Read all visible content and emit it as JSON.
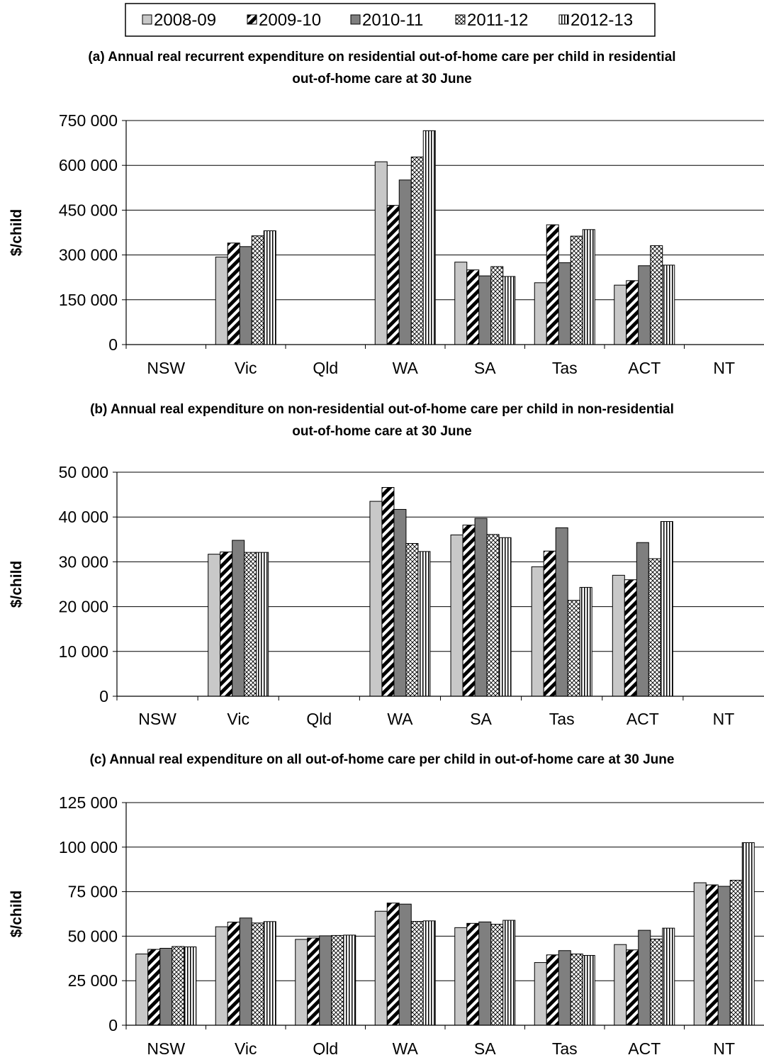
{
  "legend": {
    "series": [
      "2008-09",
      "2009-10",
      "2010-11",
      "2011-12",
      "2012-13"
    ]
  },
  "series_styles": [
    {
      "fill": "#c8c8c8",
      "pattern": "solid"
    },
    {
      "fill": "#ffffff",
      "pattern": "diagonal-stripes"
    },
    {
      "fill": "#7f7f7f",
      "pattern": "solid"
    },
    {
      "fill": "#ffffff",
      "pattern": "crosshatch"
    },
    {
      "fill": "#ffffff",
      "pattern": "vertical-stripes"
    }
  ],
  "chart_data": [
    {
      "type": "bar",
      "title_lines": [
        "(a) Annual real recurrent expenditure on residential out-of-home care per child in residential",
        "out-of-home care at 30 June"
      ],
      "ylabel": "$/child",
      "ylim": [
        0,
        750000
      ],
      "yticks": [
        0,
        150000,
        300000,
        450000,
        600000,
        750000
      ],
      "ytick_labels": [
        "0",
        "150 000",
        "300 000",
        "450 000",
        "600 000",
        "750 000"
      ],
      "categories": [
        "NSW",
        "Vic",
        "Qld",
        "WA",
        "SA",
        "Tas",
        "ACT",
        "NT"
      ],
      "series": [
        {
          "name": "2008-09",
          "values": [
            null,
            293000,
            null,
            612000,
            276000,
            207000,
            199000,
            null
          ]
        },
        {
          "name": "2009-10",
          "values": [
            null,
            340000,
            null,
            466000,
            250000,
            401000,
            214000,
            null
          ]
        },
        {
          "name": "2010-11",
          "values": [
            null,
            328000,
            null,
            551000,
            230000,
            274000,
            264000,
            null
          ]
        },
        {
          "name": "2011-12",
          "values": [
            null,
            364000,
            null,
            628000,
            261000,
            363000,
            331000,
            null
          ]
        },
        {
          "name": "2012-13",
          "values": [
            null,
            381000,
            null,
            716000,
            228000,
            385000,
            266000,
            null
          ]
        }
      ]
    },
    {
      "type": "bar",
      "title_lines": [
        "(b) Annual real expenditure on non-residential out-of-home care per child in non-residential",
        "out-of-home care at 30 June"
      ],
      "ylabel": "$/child",
      "ylim": [
        0,
        50000
      ],
      "yticks": [
        0,
        10000,
        20000,
        30000,
        40000,
        50000
      ],
      "ytick_labels": [
        "0",
        "10 000",
        "20 000",
        "30 000",
        "40 000",
        "50 000"
      ],
      "categories": [
        "NSW",
        "Vic",
        "Qld",
        "WA",
        "SA",
        "Tas",
        "ACT",
        "NT"
      ],
      "series": [
        {
          "name": "2008-09",
          "values": [
            null,
            31700,
            null,
            43500,
            36000,
            28900,
            27000,
            null
          ]
        },
        {
          "name": "2009-10",
          "values": [
            null,
            32200,
            null,
            46600,
            38200,
            32400,
            26000,
            null
          ]
        },
        {
          "name": "2010-11",
          "values": [
            null,
            34800,
            null,
            41700,
            39700,
            37600,
            34300,
            null
          ]
        },
        {
          "name": "2011-12",
          "values": [
            null,
            32100,
            null,
            34100,
            36100,
            21400,
            30700,
            null
          ]
        },
        {
          "name": "2012-13",
          "values": [
            null,
            32100,
            null,
            32300,
            35400,
            24300,
            39000,
            null
          ]
        }
      ]
    },
    {
      "type": "bar",
      "title_lines": [
        "(c) Annual real expenditure on all out-of-home care per child in out-of-home care at 30 June"
      ],
      "ylabel": "$/child",
      "ylim": [
        0,
        125000
      ],
      "yticks": [
        0,
        25000,
        50000,
        75000,
        100000,
        125000
      ],
      "ytick_labels": [
        "0",
        "25 000",
        "50 000",
        "75 000",
        "100 000",
        "125 000"
      ],
      "categories": [
        "NSW",
        "Vic",
        "Qld",
        "WA",
        "SA",
        "Tas",
        "ACT",
        "NT"
      ],
      "series": [
        {
          "name": "2008-09",
          "values": [
            40000,
            55300,
            48200,
            64000,
            54800,
            35200,
            45300,
            80000
          ]
        },
        {
          "name": "2009-10",
          "values": [
            42600,
            57900,
            49000,
            68600,
            57200,
            39500,
            42300,
            78800
          ]
        },
        {
          "name": "2010-11",
          "values": [
            43200,
            60200,
            50200,
            68000,
            58000,
            41900,
            53300,
            78000
          ]
        },
        {
          "name": "2011-12",
          "values": [
            44200,
            57400,
            50400,
            58300,
            56700,
            40000,
            48400,
            81400
          ]
        },
        {
          "name": "2012-13",
          "values": [
            44000,
            58200,
            50600,
            58600,
            58900,
            39200,
            54500,
            102500
          ]
        }
      ]
    }
  ]
}
